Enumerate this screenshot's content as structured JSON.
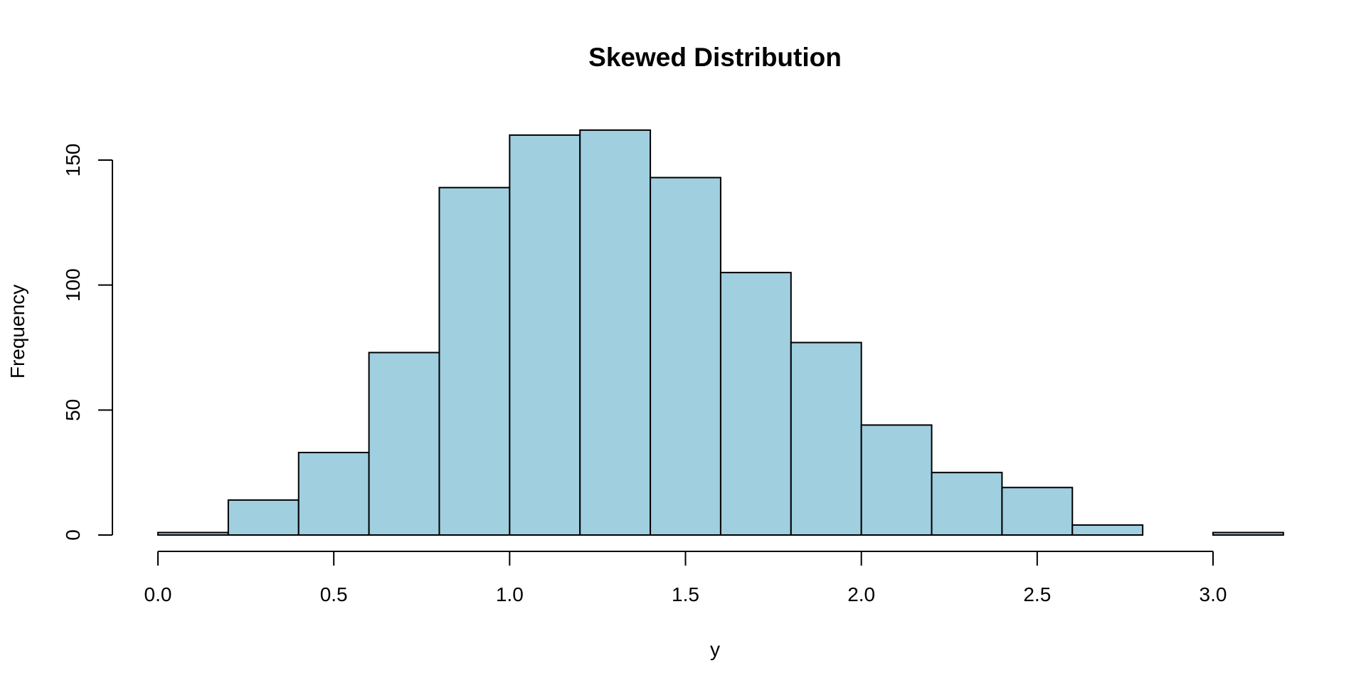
{
  "chart_data": {
    "type": "bar",
    "title": "Skewed Distribution",
    "xlabel": "y",
    "ylabel": "Frequency",
    "bins": [
      {
        "from": 0.0,
        "to": 0.2,
        "count": 1
      },
      {
        "from": 0.2,
        "to": 0.4,
        "count": 14
      },
      {
        "from": 0.4,
        "to": 0.6,
        "count": 33
      },
      {
        "from": 0.6,
        "to": 0.8,
        "count": 73
      },
      {
        "from": 0.8,
        "to": 1.0,
        "count": 139
      },
      {
        "from": 1.0,
        "to": 1.2,
        "count": 160
      },
      {
        "from": 1.2,
        "to": 1.4,
        "count": 162
      },
      {
        "from": 1.4,
        "to": 1.6,
        "count": 143
      },
      {
        "from": 1.6,
        "to": 1.8,
        "count": 105
      },
      {
        "from": 1.8,
        "to": 2.0,
        "count": 77
      },
      {
        "from": 2.0,
        "to": 2.2,
        "count": 44
      },
      {
        "from": 2.2,
        "to": 2.4,
        "count": 25
      },
      {
        "from": 2.4,
        "to": 2.6,
        "count": 19
      },
      {
        "from": 2.6,
        "to": 2.8,
        "count": 4
      },
      {
        "from": 2.8,
        "to": 3.0,
        "count": 0
      },
      {
        "from": 3.0,
        "to": 3.2,
        "count": 1
      }
    ],
    "xlim": [
      0.0,
      3.2
    ],
    "ylim": [
      0,
      162
    ],
    "x_ticks": [
      0.0,
      0.5,
      1.0,
      1.5,
      2.0,
      2.5,
      3.0
    ],
    "x_tick_labels": [
      "0.0",
      "0.5",
      "1.0",
      "1.5",
      "2.0",
      "2.5",
      "3.0"
    ],
    "y_ticks": [
      0,
      50,
      100,
      150
    ],
    "y_tick_labels": [
      "0",
      "50",
      "100",
      "150"
    ],
    "grid": false,
    "legend": "none",
    "bar_color": "#a0cfe0",
    "border_color": "#000000"
  }
}
